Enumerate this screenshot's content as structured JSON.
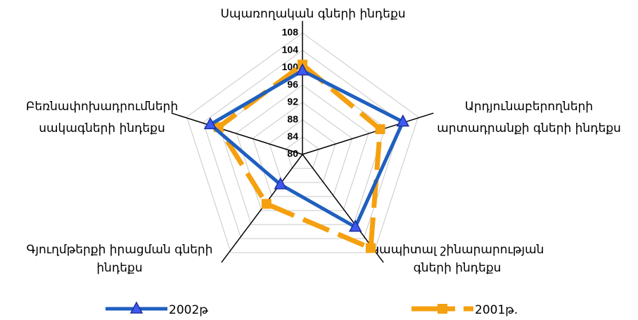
{
  "chart_data": {
    "type": "radar",
    "categories": [
      [
        "Սպառողական գների ինդեքս"
      ],
      [
        "Արդյունաբերողների",
        "արտադրանքի գների ինդեքս"
      ],
      [
        "Կապիտալ շինարարության",
        "գների ինդեքս"
      ],
      [
        "Գյուղմթերքի իրացման գների",
        "ինդեքս"
      ],
      [
        "Բեռնափոխադրումների",
        "սակագների ինդեքս"
      ]
    ],
    "series": [
      {
        "name": "2002թ",
        "color": "#1f5fbf",
        "marker": "triangle",
        "values": [
          99.3,
          104.3,
          100.7,
          88.6,
          102.3
        ]
      },
      {
        "name": "2001թ.",
        "color": "#f5a00f",
        "marker": "square",
        "dashed": true,
        "values": [
          100.7,
          98.8,
          106.7,
          94.1,
          100.3
        ]
      }
    ],
    "ylim": [
      80,
      108
    ],
    "yticks": [
      80,
      84,
      88,
      92,
      96,
      100,
      104,
      108
    ],
    "grid": true
  }
}
